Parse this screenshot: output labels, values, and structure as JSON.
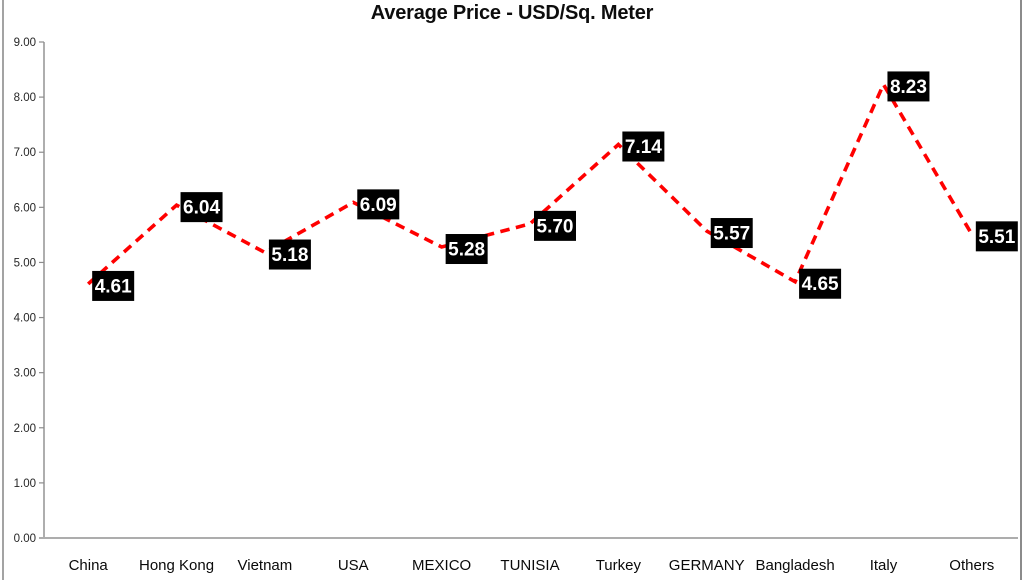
{
  "chart_data": {
    "type": "line",
    "title": "Average Price - USD/Sq. Meter",
    "categories": [
      "China",
      "Hong Kong",
      "Vietnam",
      "USA",
      "MEXICO",
      "TUNISIA",
      "Turkey",
      "GERMANY",
      "Bangladesh",
      "Italy",
      "Others"
    ],
    "values": [
      4.61,
      6.04,
      5.18,
      6.09,
      5.28,
      5.7,
      7.14,
      5.57,
      4.65,
      8.23,
      5.51
    ],
    "data_labels": [
      "4.61",
      "6.04",
      "5.18",
      "6.09",
      "5.28",
      "5.70",
      "7.14",
      "5.57",
      "4.65",
      "8.23",
      "5.51"
    ],
    "ylim": [
      0,
      9
    ],
    "ytick_step": 1,
    "ytick_labels": [
      "0.00",
      "1.00",
      "2.00",
      "3.00",
      "4.00",
      "5.00",
      "6.00",
      "7.00",
      "8.00",
      "9.00"
    ],
    "xlabel": "",
    "ylabel": "",
    "grid": false,
    "legend": "none",
    "line_color": "#ff0000",
    "line_style": "dashed",
    "label_bg_color": "#000000",
    "label_text_color": "#ffffff",
    "axis_color": "#8c8c8c",
    "x_axis_color": "#adadad"
  }
}
